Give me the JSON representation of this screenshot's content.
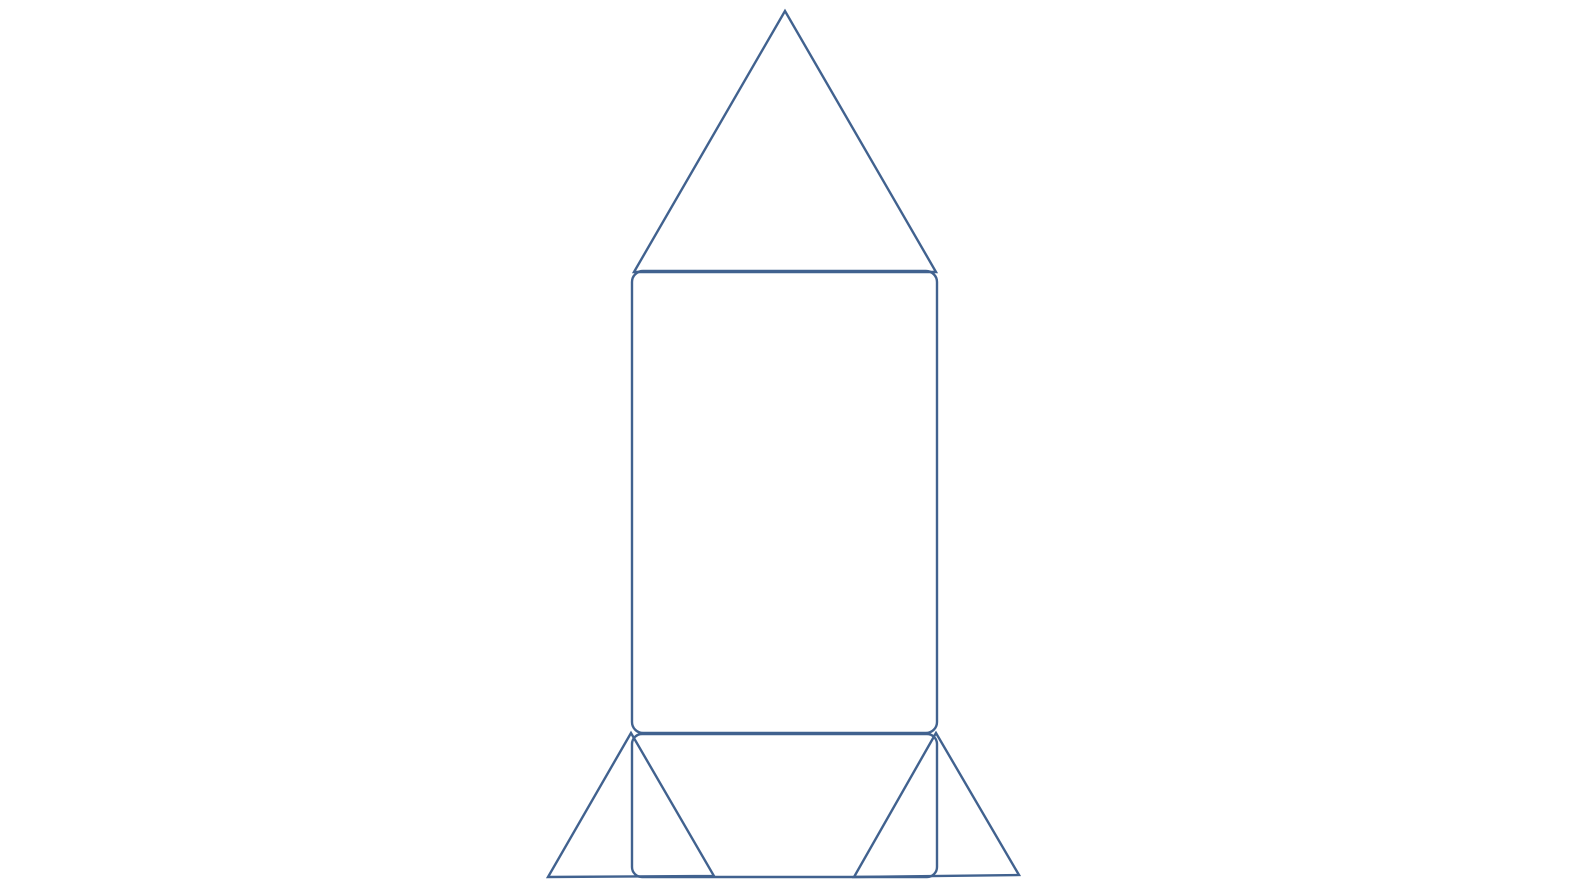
{
  "diagram": {
    "subject": "rocket",
    "shapes": [
      "nose-cone",
      "rocket-body",
      "rocket-base",
      "left-fin",
      "right-fin"
    ]
  },
  "colors": {
    "background": "#ffffff",
    "stroke": "#41628f"
  }
}
